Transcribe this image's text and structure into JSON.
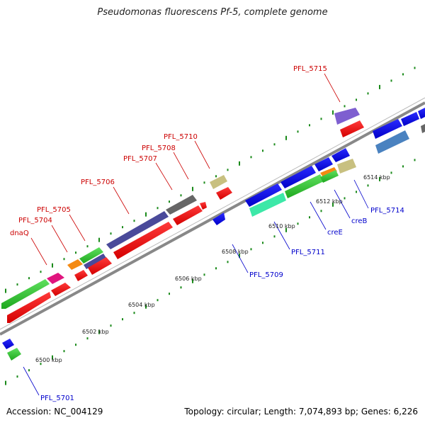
{
  "title": "Pseudomonas fluorescens Pf-5, complete genome",
  "footer": {
    "accession": "Accession: NC_004129",
    "summary": "Topology: circular; Length: 7,074,893 bp; Genes: 6,226"
  },
  "scale_labels": [
    "6500 kbp",
    "6502 kbp",
    "6504 kbp",
    "6506 kbp",
    "6508 kbp",
    "6510 kbp",
    "6512 kbp",
    "6514 kbp"
  ],
  "gene_labels_upper": [
    "dnaQ",
    "PFL_5704",
    "PFL_5705",
    "PFL_5706",
    "PFL_5707",
    "PFL_5708",
    "PFL_5710",
    "PFL_5715"
  ],
  "gene_labels_lower": [
    "PFL_5701",
    "PFL_5709",
    "PFL_5711",
    "creE",
    "creB",
    "PFL_5714"
  ],
  "colors": {
    "upper_label": "#cc0000",
    "lower_label": "#0000cc",
    "backbone": "#888888",
    "tick": "#1a8a1a"
  }
}
